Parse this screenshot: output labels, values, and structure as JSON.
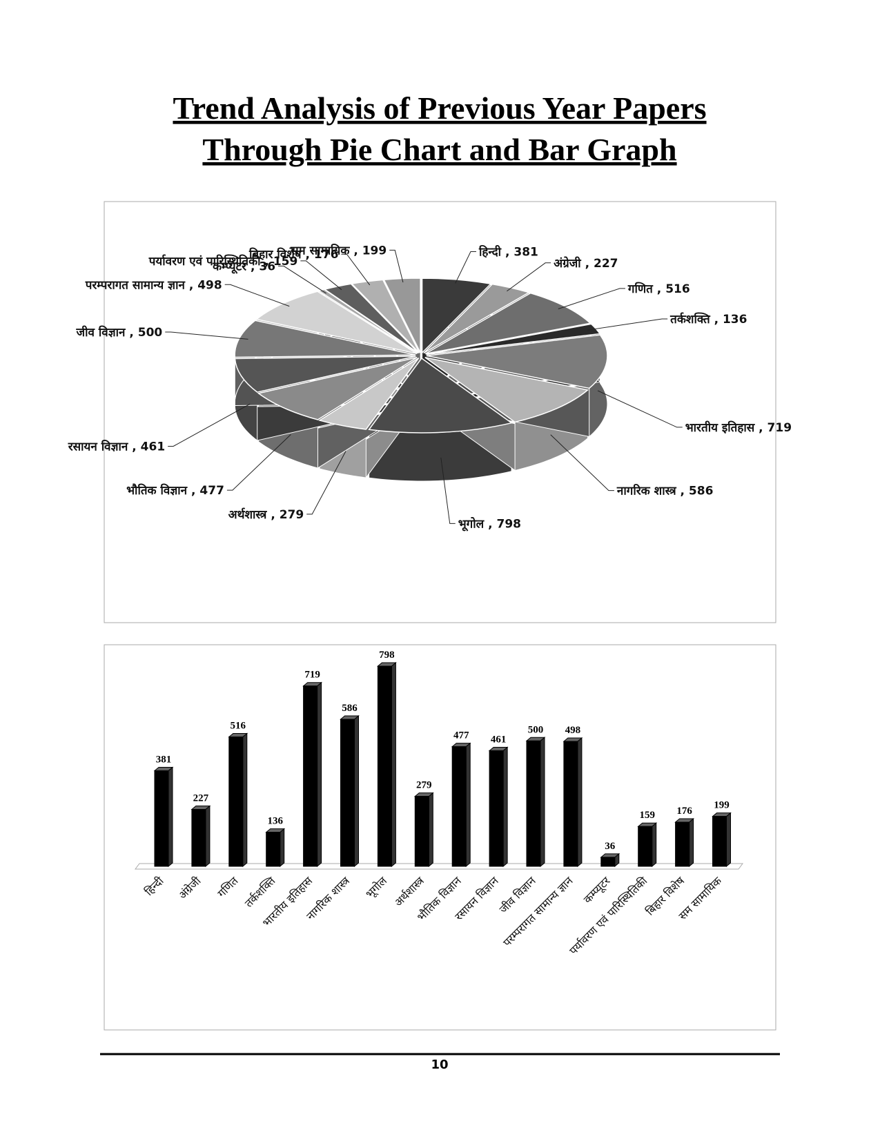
{
  "title_lines": [
    "Trend Analysis of Previous Year Papers",
    "Through Pie Chart and Bar Graph"
  ],
  "page_number": "10",
  "chart_data": [
    {
      "type": "pie",
      "categories": [
        "हिन्दी",
        "अंग्रेजी",
        "गणित",
        "तर्कशक्ति",
        "भारतीय इतिहास",
        "नागरिक शास्त्र",
        "भूगोल",
        "अर्थशास्त्र",
        "भौतिक विज्ञान",
        "रसायन विज्ञान",
        "जीव विज्ञान",
        "परम्परागत सामान्य ज्ञान",
        "कम्प्यूटर",
        "पर्यावरण एवं पारिस्थितिकी",
        "बिहार विशेष",
        "सम सामायिक"
      ],
      "values": [
        381,
        227,
        516,
        136,
        719,
        586,
        798,
        279,
        477,
        461,
        500,
        498,
        36,
        159,
        176,
        199
      ],
      "label_separator": " , ",
      "colors": [
        "#3a3a3a",
        "#9a9a9a",
        "#6e6e6e",
        "#2a2a2a",
        "#7c7c7c",
        "#b4b4b4",
        "#4a4a4a",
        "#c8c8c8",
        "#8a8a8a",
        "#555555",
        "#777777",
        "#d2d2d2",
        "#a6a6a6",
        "#5e5e5e",
        "#b0b0b0",
        "#989898"
      ]
    },
    {
      "type": "bar",
      "categories": [
        "हिन्दी",
        "अंग्रेजी",
        "गणित",
        "तर्कशक्ति",
        "भारतीय इतिहास",
        "नागरिक शास्त्र",
        "भूगोल",
        "अर्थशास्त्र",
        "भौतिक विज्ञान",
        "रसायन विज्ञान",
        "जीव विज्ञान",
        "परम्परागत सामान्य ज्ञान",
        "कम्प्यूटर",
        "पर्यावरण एवं पारिस्थितिकी",
        "बिहार विशेष",
        "सम सामायिक"
      ],
      "values": [
        381,
        227,
        516,
        136,
        719,
        586,
        798,
        279,
        477,
        461,
        500,
        498,
        36,
        159,
        176,
        199
      ],
      "color": "#000000"
    }
  ]
}
